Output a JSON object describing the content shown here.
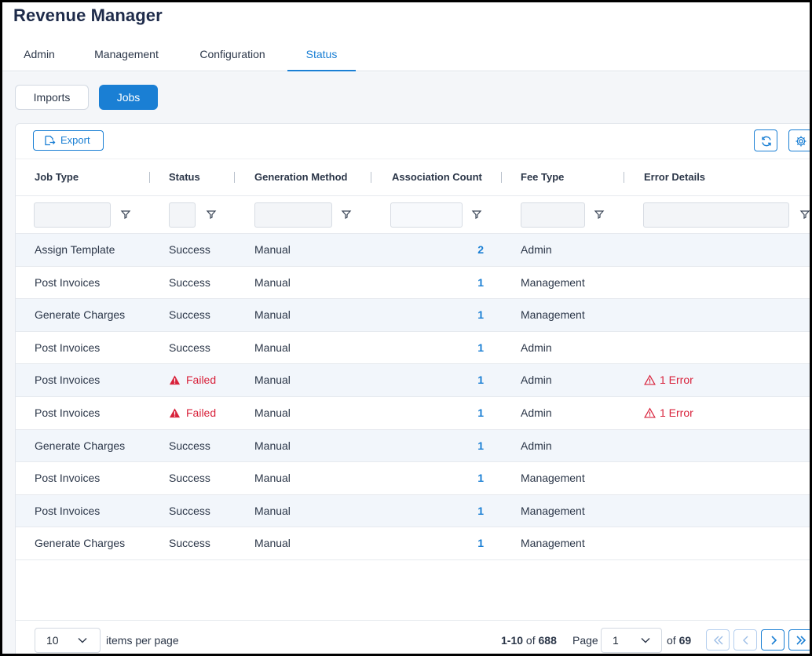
{
  "app": {
    "title": "Revenue Manager"
  },
  "nav": {
    "tabs": [
      {
        "label": "Admin"
      },
      {
        "label": "Management"
      },
      {
        "label": "Configuration"
      },
      {
        "label": "Status",
        "active": true
      }
    ]
  },
  "subtabs": {
    "imports": "Imports",
    "jobs": "Jobs",
    "active": "Jobs"
  },
  "toolbar": {
    "export_label": "Export",
    "refresh_icon": "refresh-icon",
    "settings_icon": "gear-icon"
  },
  "columns": [
    {
      "label": "Job Type"
    },
    {
      "label": "Status"
    },
    {
      "label": "Generation Method"
    },
    {
      "label": "Association Count"
    },
    {
      "label": "Fee Type"
    },
    {
      "label": "Error Details"
    }
  ],
  "rows": [
    {
      "job_type": "Assign Template",
      "status": "Success",
      "generation_method": "Manual",
      "association_count": "2",
      "fee_type": "Admin",
      "error_details": ""
    },
    {
      "job_type": "Post Invoices",
      "status": "Success",
      "generation_method": "Manual",
      "association_count": "1",
      "fee_type": "Management",
      "error_details": ""
    },
    {
      "job_type": "Generate Charges",
      "status": "Success",
      "generation_method": "Manual",
      "association_count": "1",
      "fee_type": "Management",
      "error_details": ""
    },
    {
      "job_type": "Post Invoices",
      "status": "Success",
      "generation_method": "Manual",
      "association_count": "1",
      "fee_type": "Admin",
      "error_details": ""
    },
    {
      "job_type": "Post Invoices",
      "status": "Failed",
      "generation_method": "Manual",
      "association_count": "1",
      "fee_type": "Admin",
      "error_details": "1 Error"
    },
    {
      "job_type": "Post Invoices",
      "status": "Failed",
      "generation_method": "Manual",
      "association_count": "1",
      "fee_type": "Admin",
      "error_details": "1 Error"
    },
    {
      "job_type": "Generate Charges",
      "status": "Success",
      "generation_method": "Manual",
      "association_count": "1",
      "fee_type": "Admin",
      "error_details": ""
    },
    {
      "job_type": "Post Invoices",
      "status": "Success",
      "generation_method": "Manual",
      "association_count": "1",
      "fee_type": "Management",
      "error_details": ""
    },
    {
      "job_type": "Post Invoices",
      "status": "Success",
      "generation_method": "Manual",
      "association_count": "1",
      "fee_type": "Management",
      "error_details": ""
    },
    {
      "job_type": "Generate Charges",
      "status": "Success",
      "generation_method": "Manual",
      "association_count": "1",
      "fee_type": "Management",
      "error_details": ""
    }
  ],
  "pagination": {
    "page_size": "10",
    "items_per_page_label": "items per page",
    "range": "1-10",
    "of_word": "of",
    "total": "688",
    "page_label": "Page",
    "current_page": "1",
    "total_pages": "69"
  },
  "colors": {
    "accent": "#1a7fd4",
    "error": "#d8223b",
    "title": "#1e2b4a",
    "row_alt": "#f2f6fb"
  }
}
